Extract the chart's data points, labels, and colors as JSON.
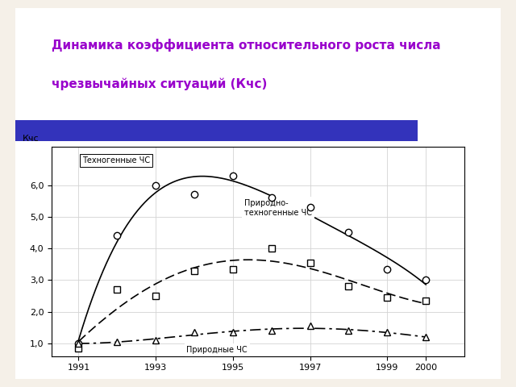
{
  "title_line1": "Динамика коэффициента относительного роста числа",
  "title_line2": "чрезвычайных ситуаций (Кчс)",
  "title_color": "#9900CC",
  "title_fontsize": 11,
  "header_bar_color": "#3333BB",
  "bg_color": "#FFFFFF",
  "outer_bg": "#F5F0E8",
  "years": [
    1991,
    1992,
    1993,
    1994,
    1995,
    1996,
    1997,
    1998,
    1999,
    2000
  ],
  "technogenic": [
    1.0,
    4.4,
    6.0,
    5.7,
    6.3,
    5.6,
    5.3,
    4.5,
    3.35,
    3.0
  ],
  "prirodno_tekhnogennye": [
    0.85,
    2.7,
    2.5,
    3.3,
    3.35,
    4.0,
    3.55,
    2.8,
    2.45,
    2.35
  ],
  "prirodnye": [
    1.0,
    1.05,
    1.1,
    1.35,
    1.35,
    1.4,
    1.55,
    1.4,
    1.35,
    1.2
  ],
  "ylabel": "Кчс",
  "ylim": [
    0.6,
    7.2
  ],
  "yticks": [
    1.0,
    2.0,
    3.0,
    4.0,
    5.0,
    6.0
  ],
  "ytick_labels": [
    "1,0",
    "2,0",
    "3,0",
    "4,0",
    "5,0",
    "6,0"
  ],
  "xlim": [
    1990.3,
    2001.0
  ],
  "xticks": [
    1991,
    1993,
    1995,
    1997,
    1999,
    2000
  ],
  "legend_tech": "Техногенные ЧС",
  "legend_prt": "Природно-\nтехногенные ЧС",
  "legend_nat": "Природные ЧС"
}
